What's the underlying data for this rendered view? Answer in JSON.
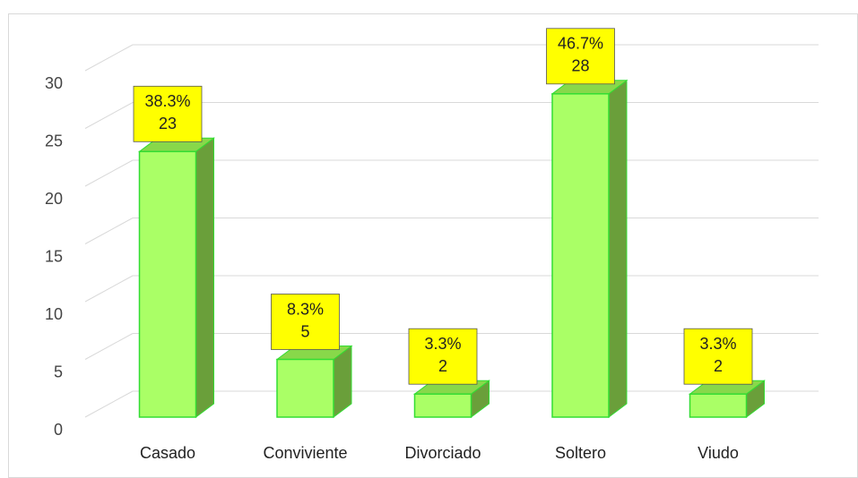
{
  "chart_data": {
    "type": "bar3d",
    "categories": [
      "Casado",
      "Conviviente",
      "Divorciado",
      "Soltero",
      "Viudo"
    ],
    "values": [
      23,
      5,
      2,
      28,
      2
    ],
    "share_labels": [
      "38.3%",
      "8.3%",
      "3.3%",
      "46.7%",
      "3.3%"
    ],
    "color": "#aaff66",
    "label_box_color": "#ffff00",
    "ylim": [
      0,
      30
    ],
    "yticks": [
      0,
      5,
      10,
      15,
      20,
      25,
      30
    ],
    "grid": true
  }
}
